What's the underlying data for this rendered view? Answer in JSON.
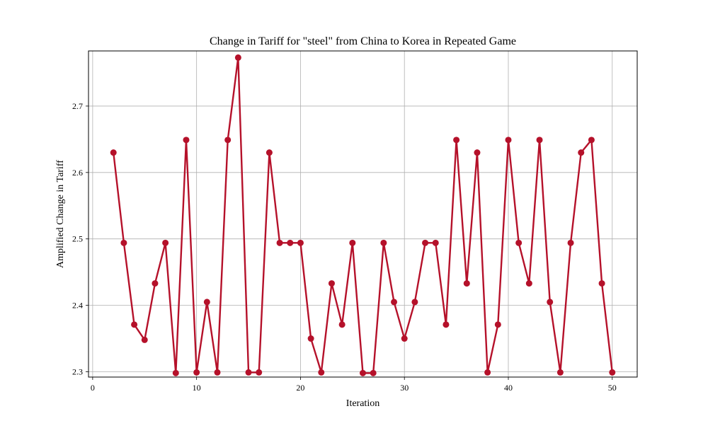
{
  "chart_data": {
    "type": "line",
    "title": "Change in Tariff for \"steel\" from China to Korea in Repeated Game",
    "xlabel": "Iteration",
    "ylabel": "Amplified Change in Tariff",
    "xlim": [
      -0.4,
      52.4
    ],
    "ylim": [
      2.292,
      2.783
    ],
    "xticks": [
      0,
      10,
      20,
      30,
      40,
      50
    ],
    "yticks": [
      2.3,
      2.4,
      2.5,
      2.6,
      2.7
    ],
    "ytick_labels": [
      "2.3",
      "2.4",
      "2.5",
      "2.6",
      "2.7"
    ],
    "grid": true,
    "series_color": "#b5112a",
    "x": [
      2,
      3,
      4,
      5,
      6,
      7,
      8,
      9,
      10,
      11,
      12,
      13,
      14,
      15,
      16,
      17,
      18,
      19,
      20,
      21,
      22,
      23,
      24,
      25,
      26,
      27,
      28,
      29,
      30,
      31,
      32,
      33,
      34,
      35,
      36,
      37,
      38,
      39,
      40,
      41,
      42,
      43,
      44,
      45,
      46,
      47,
      48,
      49,
      50
    ],
    "y": [
      2.63,
      2.494,
      2.371,
      2.348,
      2.433,
      2.494,
      2.298,
      2.649,
      2.299,
      2.405,
      2.299,
      2.649,
      2.773,
      2.299,
      2.299,
      2.63,
      2.494,
      2.494,
      2.494,
      2.35,
      2.299,
      2.433,
      2.371,
      2.494,
      2.298,
      2.298,
      2.494,
      2.405,
      2.35,
      2.405,
      2.494,
      2.494,
      2.371,
      2.649,
      2.433,
      2.63,
      2.299,
      2.371,
      2.649,
      2.494,
      2.433,
      2.649,
      2.405,
      2.299,
      2.494,
      2.63,
      2.649,
      2.433,
      2.299
    ]
  }
}
